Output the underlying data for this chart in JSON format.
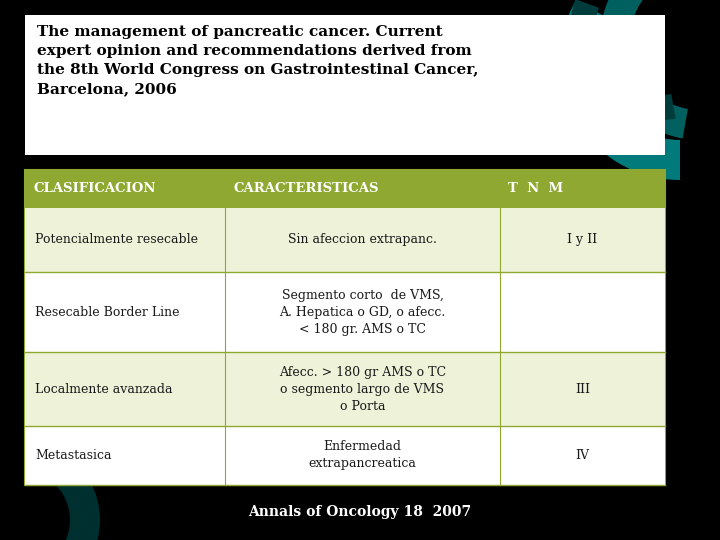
{
  "background_color": "#000000",
  "title_box_color": "#ffffff",
  "title_text": "The management of pancreatic cancer. Current\nexpert opinion and recommendations derived from\nthe 8th World Congress on Gastrointestinal Cancer,\nBarcelona, 2006",
  "title_fontsize": 11.0,
  "header_bg": "#8fa832",
  "header_text_color": "#ffffff",
  "header_cols": [
    "CLASIFICACION",
    "CARACTERISTICAS",
    "T  N  M"
  ],
  "rows": [
    {
      "col1": "Potencialmente resecable",
      "col2": "Sin afeccion extrapanc.",
      "col3": "I y II",
      "bg": "#eef2d8"
    },
    {
      "col1": "Resecable Border Line",
      "col2": "Segmento corto  de VMS,\nA. Hepatica o GD, o afecc.\n< 180 gr. AMS o TC",
      "col3": "",
      "bg": "#ffffff"
    },
    {
      "col1": "Localmente avanzada",
      "col2": "Afecc. > 180 gr AMS o TC\no segmento largo de VMS\no Porta",
      "col3": "III",
      "bg": "#eef2d8"
    },
    {
      "col1": "Metastasica",
      "col2": "Enfermedad\nextrapancreatica",
      "col3": "IV",
      "bg": "#ffffff"
    }
  ],
  "footer_text": "Annals of Oncology 18  2007",
  "footer_color": "#ffffff",
  "footer_fontsize": 10,
  "cell_text_color": "#1a1a1a",
  "cell_fontsize": 9.0,
  "header_fontsize": 9.5,
  "table_border_color": "#8fa832",
  "teal_color1": "#007070",
  "teal_color2": "#005858",
  "teal_color3": "#004444"
}
